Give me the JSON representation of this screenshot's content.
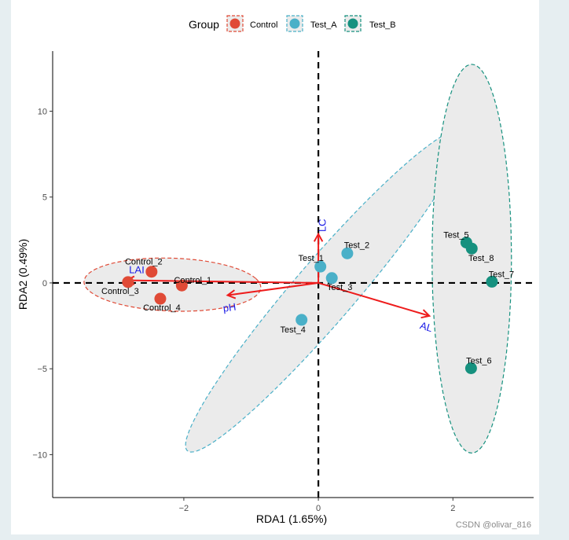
{
  "watermark": "CSDN @olivar_816",
  "chart_data": {
    "type": "scatter",
    "title": "",
    "xlabel": "RDA1 (1.65%)",
    "ylabel": "RDA2 (0.49%)",
    "xlim": [
      -3.95,
      3.2
    ],
    "ylim": [
      -12.5,
      13.5
    ],
    "xticks": [
      -2,
      0,
      2
    ],
    "yticks": [
      -10,
      -5,
      0,
      5,
      10
    ],
    "grid": false,
    "legend": {
      "title": "Group",
      "position": "top",
      "entries": [
        {
          "name": "Control",
          "color": "#e04a36"
        },
        {
          "name": "Test_A",
          "color": "#4ab0c8"
        },
        {
          "name": "Test_B",
          "color": "#16917f"
        }
      ]
    },
    "series": [
      {
        "name": "Control",
        "color": "#e04a36",
        "points": [
          {
            "label": "Control_1",
            "x": -2.03,
            "y": -0.15
          },
          {
            "label": "Control_2",
            "x": -2.48,
            "y": 0.65
          },
          {
            "label": "Control_3",
            "x": -2.83,
            "y": 0.05
          },
          {
            "label": "Control_4",
            "x": -2.35,
            "y": -0.92
          }
        ]
      },
      {
        "name": "Test_A",
        "color": "#4ab0c8",
        "points": [
          {
            "label": "Test_1",
            "x": 0.03,
            "y": 0.95
          },
          {
            "label": "Test_2",
            "x": 0.43,
            "y": 1.72
          },
          {
            "label": "Test_3",
            "x": 0.2,
            "y": 0.28
          },
          {
            "label": "Test_4",
            "x": -0.25,
            "y": -2.15
          }
        ]
      },
      {
        "name": "Test_B",
        "color": "#16917f",
        "points": [
          {
            "label": "Test_5",
            "x": 2.2,
            "y": 2.35
          },
          {
            "label": "Test_6",
            "x": 2.27,
            "y": -4.97
          },
          {
            "label": "Test_7",
            "x": 2.58,
            "y": 0.07
          },
          {
            "label": "Test_8",
            "x": 2.28,
            "y": 2.0
          }
        ]
      }
    ],
    "ellipses": [
      {
        "group": "Control",
        "color": "#e04a36",
        "cx": -2.17,
        "cy": -0.1,
        "rx": 1.29,
        "ry": 1.57,
        "angle": 16
      },
      {
        "group": "Test_A",
        "color": "#4ab0c8",
        "cx": 0.1,
        "cy": -0.46,
        "rx": 9.6,
        "ry": 0.58,
        "angle": 78
      },
      {
        "group": "Test_B",
        "color": "#16917f",
        "cx": 2.28,
        "cy": 1.41,
        "rx": 0.59,
        "ry": 11.32,
        "angle": 0
      }
    ],
    "arrows": [
      {
        "label": "LAI",
        "x": -2.85,
        "y": 0.15,
        "label_x": -2.7,
        "label_y": 0.72
      },
      {
        "label": "pH",
        "x": -1.35,
        "y": -0.72,
        "label_x": -1.32,
        "label_y": -1.48
      },
      {
        "label": "AL",
        "x": 1.65,
        "y": -1.92,
        "label_x": 1.6,
        "label_y": -2.6
      },
      {
        "label": "LC",
        "x": 0.0,
        "y": 2.85,
        "label_x": 0.07,
        "label_y": 3.35
      }
    ],
    "reference_lines": {
      "x": 0,
      "y": 0
    }
  }
}
